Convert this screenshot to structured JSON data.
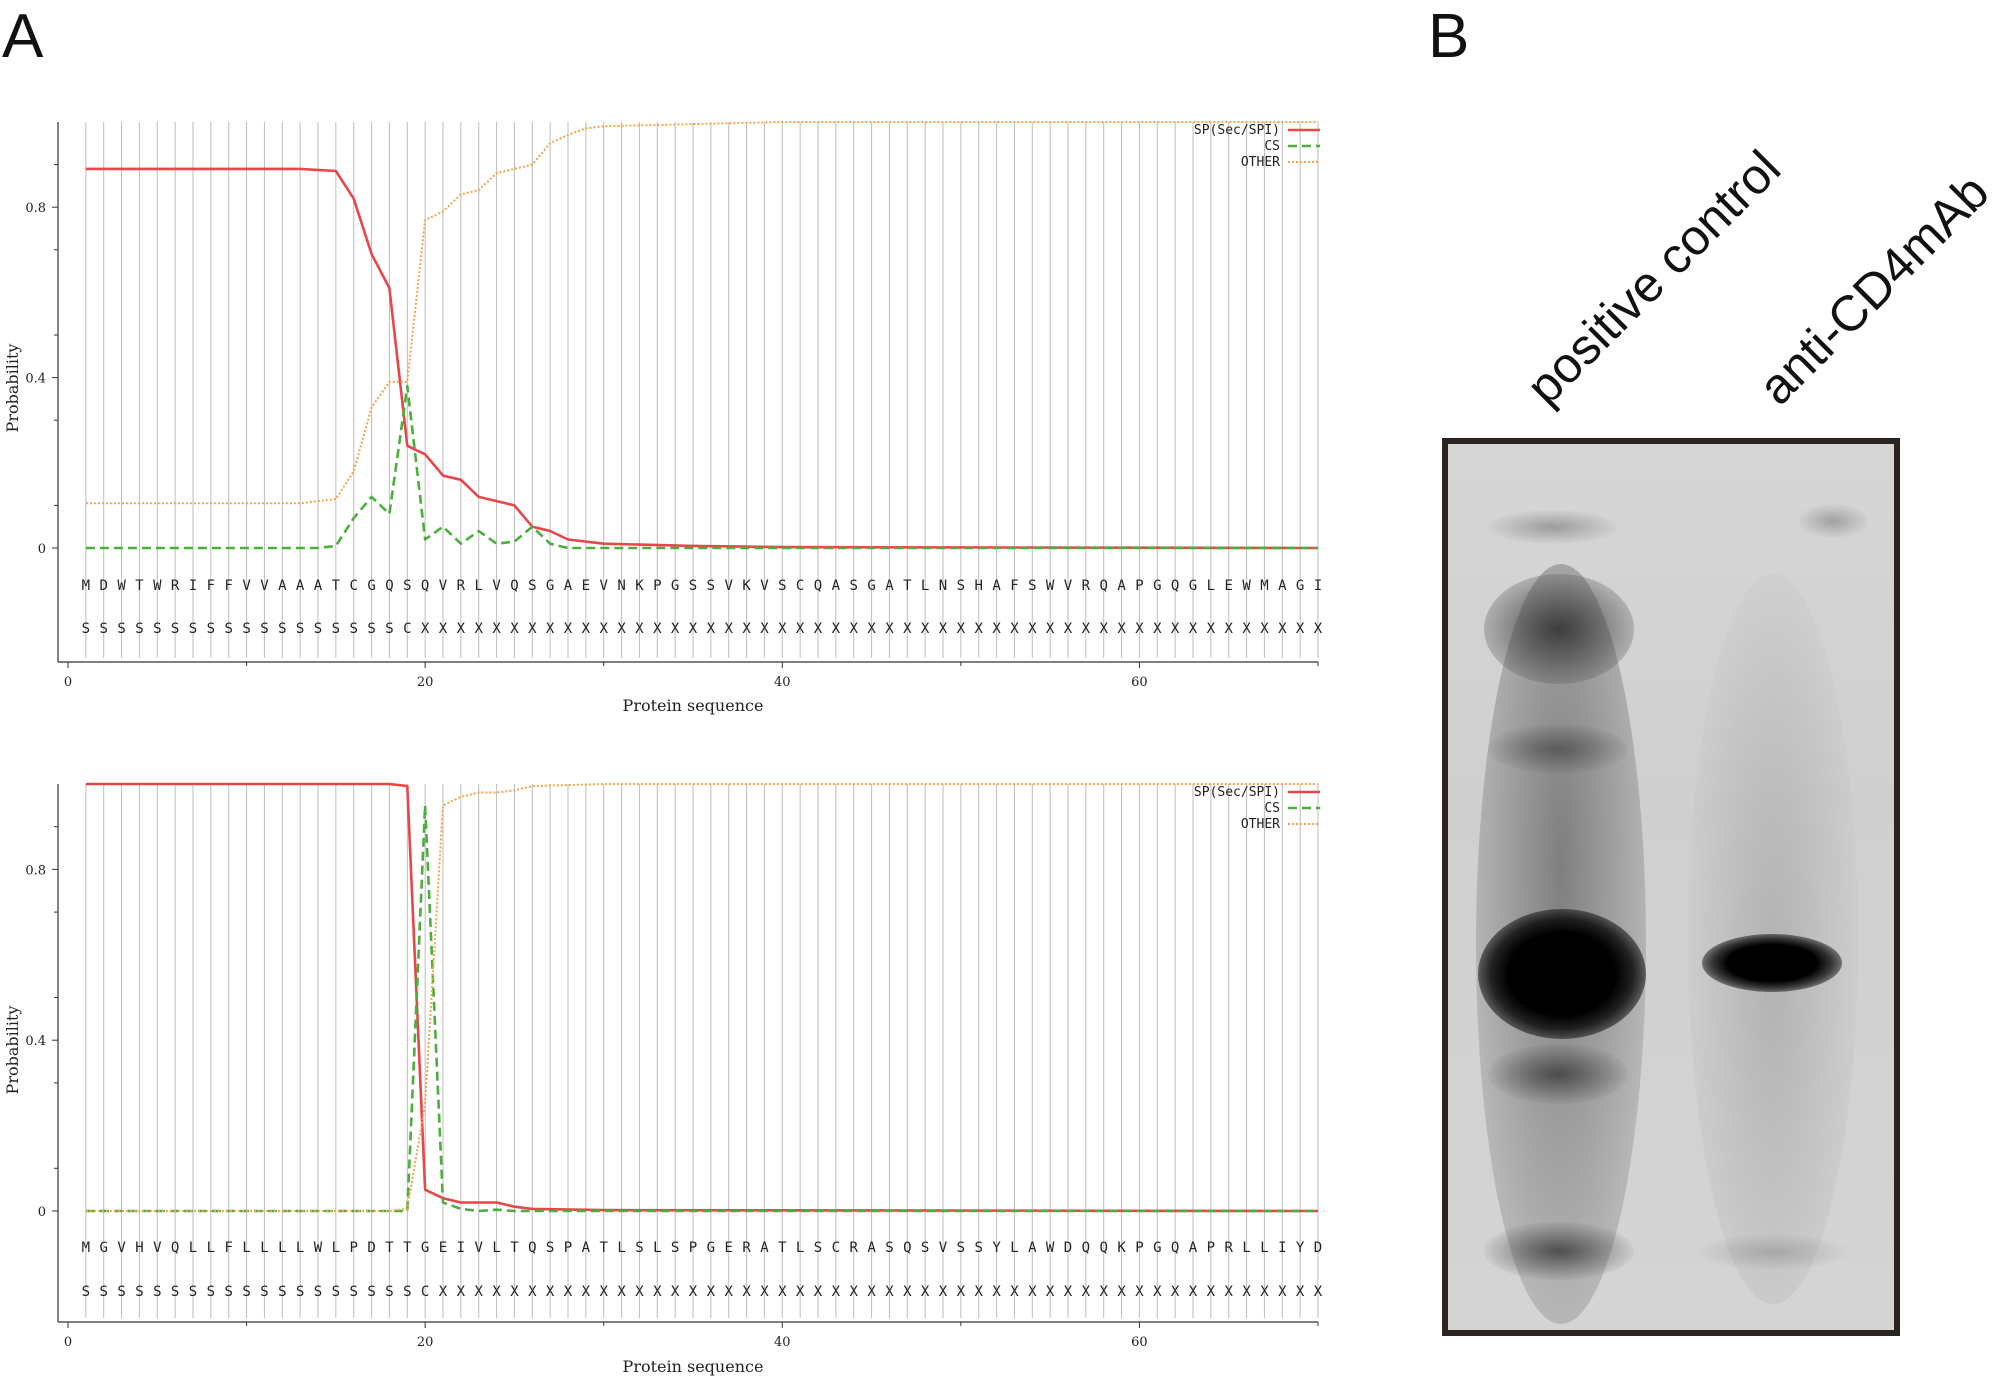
{
  "panels": {
    "a_label": "A",
    "b_label": "B"
  },
  "colors": {
    "sp": "#e8474a",
    "cs": "#4cae3c",
    "other": "#f5a34a",
    "grid": "#bdbdbd",
    "blot_band": "#000000"
  },
  "chart_data": [
    {
      "type": "line",
      "title": "",
      "xlabel": "Protein sequence",
      "ylabel": "Probability",
      "xlim": [
        0,
        70
      ],
      "ylim": [
        0,
        1
      ],
      "xticks": [
        "0",
        "20",
        "40",
        "60"
      ],
      "yticks": [
        "0",
        "0.4",
        "0.8"
      ],
      "legend_position": "top-right",
      "grid": true,
      "sequence": "MDWTWRIFFVVAAATCGQSQVRLVQSGAEVNKPGSSVKVSCQASGATLNSHAFSWVRQAPGQGLEWMAGI",
      "labels": "SSSSSSSSSSSSSSSSSSCXXXXXXXXXXXXXXXXXXXXXXXXXXXXXXXXXXXXXXXXXXXXXXXXXXX",
      "series": [
        {
          "name": "SP(Sec/SPI)",
          "style": "solid",
          "x": [
            1,
            13,
            15,
            16,
            17,
            18,
            19,
            20,
            21,
            22,
            23,
            24,
            25,
            26,
            27,
            28,
            30,
            35,
            40,
            70
          ],
          "y": [
            0.89,
            0.89,
            0.885,
            0.82,
            0.69,
            0.61,
            0.24,
            0.22,
            0.17,
            0.16,
            0.12,
            0.11,
            0.1,
            0.05,
            0.04,
            0.02,
            0.01,
            0.005,
            0.002,
            0.0
          ]
        },
        {
          "name": "CS",
          "style": "dashed",
          "x": [
            1,
            14,
            15,
            16,
            17,
            18,
            19,
            20,
            21,
            22,
            23,
            24,
            25,
            26,
            27,
            28,
            30,
            70
          ],
          "y": [
            0.0,
            0.0,
            0.005,
            0.07,
            0.12,
            0.08,
            0.38,
            0.02,
            0.05,
            0.01,
            0.04,
            0.01,
            0.015,
            0.05,
            0.01,
            0.0,
            0.0,
            0.0
          ]
        },
        {
          "name": "OTHER",
          "style": "dotted",
          "x": [
            1,
            13,
            15,
            16,
            17,
            18,
            19,
            20,
            21,
            22,
            23,
            24,
            25,
            26,
            27,
            28,
            29,
            30,
            35,
            40,
            70
          ],
          "y": [
            0.105,
            0.105,
            0.115,
            0.18,
            0.33,
            0.39,
            0.39,
            0.77,
            0.79,
            0.83,
            0.84,
            0.88,
            0.89,
            0.9,
            0.95,
            0.97,
            0.985,
            0.99,
            0.995,
            1.0,
            1.0
          ]
        }
      ]
    },
    {
      "type": "line",
      "title": "",
      "xlabel": "Protein sequence",
      "ylabel": "Probability",
      "xlim": [
        0,
        70
      ],
      "ylim": [
        0,
        1
      ],
      "xticks": [
        "0",
        "20",
        "40",
        "60"
      ],
      "yticks": [
        "0",
        "0.4",
        "0.8"
      ],
      "legend_position": "top-right",
      "grid": true,
      "sequence": "MGVHVQLLFLLLLWLPDTTGEIVLTQSPATLSLSPGERATLSCRASQSVSSYLAWDQQKPGQAPRLLIYD",
      "labels": "SSSSSSSSSSSSSSSSSSSCXXXXXXXXXXXXXXXXXXXXXXXXXXXXXXXXXXXXXXXXXXXXXXXXXX",
      "series": [
        {
          "name": "SP(Sec/SPI)",
          "style": "solid",
          "x": [
            1,
            18,
            19,
            20,
            21,
            22,
            23,
            24,
            25,
            26,
            30,
            70
          ],
          "y": [
            1.0,
            1.0,
            0.995,
            0.05,
            0.03,
            0.02,
            0.02,
            0.02,
            0.01,
            0.005,
            0.002,
            0.0
          ]
        },
        {
          "name": "CS",
          "style": "dashed",
          "x": [
            1,
            18,
            19,
            20,
            21,
            22,
            23,
            24,
            25,
            26,
            30,
            70
          ],
          "y": [
            0.0,
            0.0,
            0.0,
            0.95,
            0.02,
            0.005,
            0.0,
            0.003,
            0.0,
            0.0,
            0.0,
            0.0
          ]
        },
        {
          "name": "OTHER",
          "style": "dotted",
          "x": [
            1,
            18,
            19,
            20,
            21,
            22,
            23,
            24,
            25,
            26,
            30,
            70
          ],
          "y": [
            0.0,
            0.0,
            0.005,
            0.25,
            0.95,
            0.97,
            0.98,
            0.98,
            0.985,
            0.995,
            1.0,
            1.0
          ]
        }
      ]
    }
  ],
  "blot": {
    "lanes": [
      "positive control",
      "anti-CD4mAb"
    ]
  }
}
